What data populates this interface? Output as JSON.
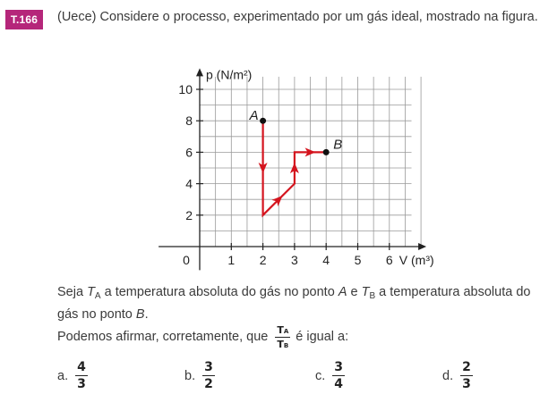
{
  "question": {
    "number": "T.166",
    "statement": "(Uece) Considere o processo, experimentado por um gás ideal, mostrado na figura."
  },
  "chart_data": {
    "type": "line",
    "xlabel": "V (m³)",
    "ylabel": "p (N/m²)",
    "x_ticks": [
      "0",
      "1",
      "2",
      "3",
      "4",
      "5",
      "6"
    ],
    "y_ticks": [
      "2",
      "4",
      "6",
      "8",
      "10"
    ],
    "xlim": [
      0,
      7
    ],
    "ylim": [
      0,
      11
    ],
    "grid": true,
    "points": [
      {
        "label": "A",
        "x": 2,
        "y": 8
      },
      {
        "label": "B",
        "x": 4,
        "y": 6
      }
    ],
    "series": [
      {
        "x": [
          2,
          2,
          3,
          3,
          4
        ],
        "y": [
          8,
          2,
          4,
          6,
          6
        ]
      }
    ],
    "line_color": "#d4141e",
    "point_color": "#111111"
  },
  "text": {
    "p1_before_ta": "Seja ",
    "ta_symbol": "T",
    "ta_sub": "A",
    "p1_mid1": " a temperatura absoluta do gás no ponto ",
    "point_a": "A",
    "p1_mid2": " e ",
    "tb_symbol": "T",
    "tb_sub": "B",
    "p1_mid3": " a temperatura absoluta do gás no ponto ",
    "point_b": "B",
    "p1_end": ".",
    "p2_before": "Podemos afirmar, corretamente, que",
    "ratio_num": "T",
    "ratio_num_sub": "A",
    "ratio_den": "T",
    "ratio_den_sub": "B",
    "p2_after": "é igual a:"
  },
  "options": [
    {
      "letter": "a.",
      "num": "4",
      "den": "3"
    },
    {
      "letter": "b.",
      "num": "3",
      "den": "2"
    },
    {
      "letter": "c.",
      "num": "3",
      "den": "4"
    },
    {
      "letter": "d.",
      "num": "2",
      "den": "3"
    }
  ]
}
